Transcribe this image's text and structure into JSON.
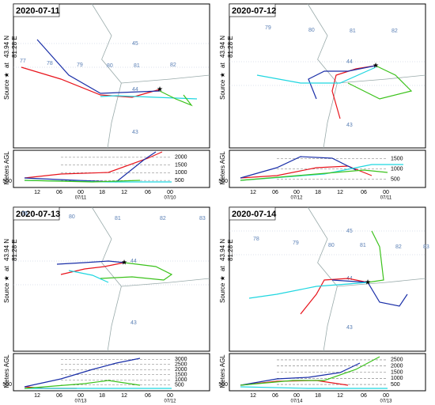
{
  "panels": [
    {
      "date": "2020-07-11",
      "source": "Source ★",
      "at": "at",
      "lat": "43.94 N",
      "lon": "81.28 E",
      "ylabel": "Meters AGL",
      "lon_labels": [
        "77",
        "78",
        "79",
        "80",
        "81",
        "82"
      ],
      "lat_labels": [
        "45",
        "44",
        "43"
      ],
      "height_ticks": [
        "2000",
        "1500",
        "1000",
        "500"
      ],
      "source_height": "500",
      "time_labels": [
        "12",
        "06",
        "00",
        "18",
        "12",
        "06",
        "00"
      ],
      "date_labels": [
        "07/11",
        "07/10"
      ]
    },
    {
      "date": "2020-07-12",
      "source": "Source ★",
      "at": "at",
      "lat": "43.94 N",
      "lon": "81.28 E",
      "ylabel": "Meters AGL",
      "lon_labels": [
        "79",
        "80",
        "81",
        "82"
      ],
      "lat_labels": [
        "44",
        "43"
      ],
      "height_ticks": [
        "1500",
        "1000",
        "500"
      ],
      "source_height": "500",
      "time_labels": [
        "12",
        "06",
        "00",
        "18",
        "12",
        "06",
        "00"
      ],
      "date_labels": [
        "07/12",
        "07/11"
      ]
    },
    {
      "date": "2020-07-13",
      "source": "Source ★",
      "at": "at",
      "lat": "43.94 N",
      "lon": "81.28 E",
      "ylabel": "Meters AGL",
      "lon_labels": [
        "79",
        "80",
        "81",
        "82",
        "83"
      ],
      "lat_labels": [
        "44",
        "43"
      ],
      "height_ticks": [
        "3000",
        "2500",
        "2000",
        "1500",
        "1000",
        "500"
      ],
      "source_height": "500",
      "time_labels": [
        "12",
        "06",
        "00",
        "18",
        "12",
        "06",
        "00"
      ],
      "date_labels": [
        "07/13",
        "07/12"
      ]
    },
    {
      "date": "2020-07-14",
      "source": "Source ★",
      "at": "at",
      "lat": "43.94 N",
      "lon": "81.28 E",
      "ylabel": "Meters AGL",
      "lon_labels": [
        "78",
        "79",
        "80",
        "81",
        "82",
        "83"
      ],
      "lat_labels": [
        "45",
        "44",
        "43"
      ],
      "height_ticks": [
        "2500",
        "2000",
        "1500",
        "1000",
        "500"
      ],
      "source_height": "500",
      "time_labels": [
        "12",
        "06",
        "00",
        "18",
        "12",
        "06",
        "00"
      ],
      "date_labels": [
        "07/14",
        "07/13"
      ]
    }
  ]
}
